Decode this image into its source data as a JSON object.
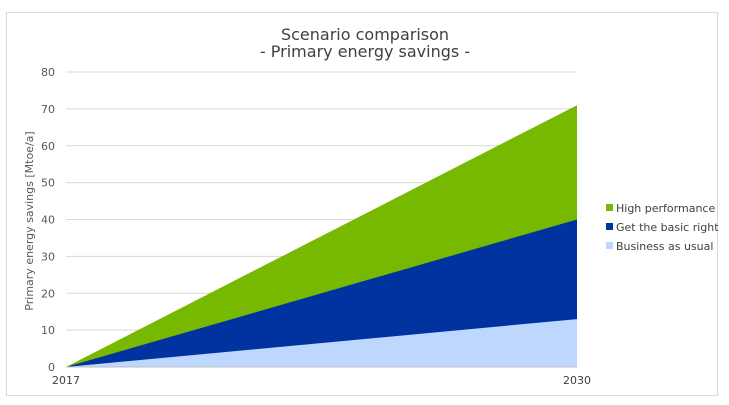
{
  "chart_data": {
    "type": "area",
    "title": "Scenario comparison",
    "subtitle": "- Primary energy savings -",
    "ylabel": "Primary energy savings [Mtoe/a]",
    "xlabel": "",
    "x": [
      "2017",
      "2030"
    ],
    "ylim": [
      0,
      80
    ],
    "yticks": [
      0,
      10,
      20,
      30,
      40,
      50,
      60,
      70,
      80
    ],
    "grid": true,
    "stacked": false,
    "legend_position": "right",
    "series": [
      {
        "name": "High performance",
        "values": [
          0,
          71
        ],
        "color": "#76b900"
      },
      {
        "name": "Get the basic right",
        "values": [
          0,
          40
        ],
        "color": "#0033a0"
      },
      {
        "name": "Business as usual",
        "values": [
          0,
          13
        ],
        "color": "#bdd7ff"
      }
    ]
  }
}
